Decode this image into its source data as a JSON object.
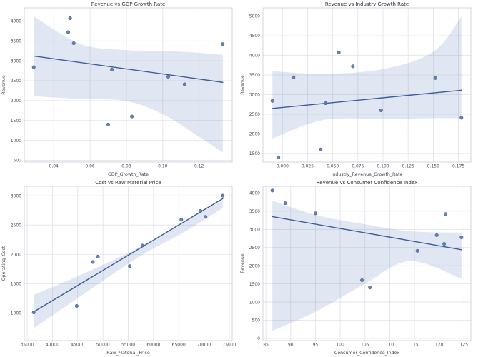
{
  "figure": {
    "background": "#ffffff",
    "point_color": "#5b76a8",
    "point_edge_color": "#3f5f96",
    "line_color": "#3d5d96",
    "band_color": "rgba(76,114,176,0.17)",
    "grid_color": "#e0e1e9",
    "spine_color": "#d5d6de",
    "title_color": "#33333a",
    "tick_color": "#4a4a52",
    "label_color": "#44444c"
  },
  "chart_data": [
    {
      "type": "scatter",
      "fit": "linear-regression-with-ci",
      "grid": true,
      "title": "Revenue vs GDP Growth Rate",
      "xlabel": "GDP_Growth_Rate",
      "ylabel": "Revenue",
      "x": [
        0.029,
        0.048,
        0.049,
        0.051,
        0.07,
        0.072,
        0.083,
        0.103,
        0.112,
        0.133
      ],
      "y": [
        2840,
        3720,
        4070,
        3440,
        1400,
        2780,
        1600,
        2600,
        2410,
        3420
      ],
      "xlim": [
        0.0238,
        0.1382
      ],
      "ylim": [
        455,
        4330
      ],
      "xticks": {
        "values": [
          0.04,
          0.06,
          0.08,
          0.1,
          0.12
        ],
        "labels": [
          "0.04",
          "0.06",
          "0.08",
          "0.10",
          "0.12"
        ]
      },
      "yticks": {
        "values": [
          500,
          1000,
          1500,
          2000,
          2500,
          3000,
          3500,
          4000
        ],
        "labels": [
          "500",
          "1000",
          "1500",
          "2000",
          "2500",
          "3000",
          "3500",
          "4000"
        ]
      },
      "ci_band": {
        "x": [
          0.029,
          0.055,
          0.08,
          0.1,
          0.117,
          0.133
        ],
        "upper": [
          4120,
          3420,
          3270,
          3250,
          3210,
          3150
        ],
        "lower": [
          2110,
          2040,
          1990,
          1660,
          1180,
          700
        ]
      }
    },
    {
      "type": "scatter",
      "fit": "linear-regression-with-ci",
      "grid": true,
      "title": "Revenue vs Industry Growth Rate",
      "xlabel": "Industry_Revenue_Growth_Rate",
      "ylabel": "Revenue",
      "x": [
        -0.01,
        -0.004,
        0.011,
        0.038,
        0.043,
        0.056,
        0.07,
        0.098,
        0.152,
        0.178
      ],
      "y": [
        2840,
        1400,
        3440,
        1600,
        2780,
        4070,
        3720,
        2600,
        3420,
        2410
      ],
      "xlim": [
        -0.0194,
        0.1874
      ],
      "ylim": [
        1280,
        5210
      ],
      "xticks": {
        "values": [
          0.0,
          0.025,
          0.05,
          0.075,
          0.1,
          0.125,
          0.15,
          0.175
        ],
        "labels": [
          "0.000",
          "0.025",
          "0.050",
          "0.075",
          "0.100",
          "0.125",
          "0.150",
          "0.175"
        ]
      },
      "yticks": {
        "values": [
          1500,
          2000,
          2500,
          3000,
          3500,
          4000,
          4500,
          5000
        ],
        "labels": [
          "1500",
          "2000",
          "2500",
          "3000",
          "3500",
          "4000",
          "4500",
          "5000"
        ]
      },
      "ci_band": {
        "x": [
          -0.01,
          0.04,
          0.1,
          0.15,
          0.178
        ],
        "upper": [
          3600,
          3530,
          3650,
          4090,
          4990
        ],
        "lower": [
          1880,
          2350,
          2380,
          2400,
          2400
        ]
      }
    },
    {
      "type": "scatter",
      "fit": "linear-regression-with-ci",
      "grid": true,
      "title": "Cost vs Raw Material Price",
      "xlabel": "Raw_Material_Price",
      "ylabel": "Operating_Cost",
      "x": [
        36300,
        44800,
        48000,
        49000,
        55300,
        57800,
        65500,
        69300,
        70300,
        73700
      ],
      "y": [
        1010,
        1120,
        1870,
        1960,
        1800,
        2150,
        2590,
        2740,
        2640,
        3000
      ],
      "xlim": [
        34430,
        75570
      ],
      "ylim": [
        530,
        3160
      ],
      "xticks": {
        "values": [
          35000,
          40000,
          45000,
          50000,
          55000,
          60000,
          65000,
          70000,
          75000
        ],
        "labels": [
          "35000",
          "40000",
          "45000",
          "50000",
          "55000",
          "60000",
          "65000",
          "70000",
          "75000"
        ]
      },
      "yticks": {
        "values": [
          1000,
          1500,
          2000,
          2500,
          3000
        ],
        "labels": [
          "1000",
          "1500",
          "2000",
          "2500",
          "3000"
        ]
      },
      "ci_band": {
        "x": [
          36300,
          44800,
          57000,
          65500,
          73700
        ],
        "upper": [
          1310,
          1620,
          2110,
          2530,
          2930
        ],
        "lower": [
          740,
          1240,
          1950,
          2350,
          2790
        ]
      }
    },
    {
      "type": "scatter",
      "fit": "linear-regression-with-ci",
      "grid": true,
      "title": "Revenue vs Consumer Confidence Index",
      "xlabel": "Consumer_Confidence_Index",
      "ylabel": "Revenue",
      "x": [
        86.3,
        88.9,
        95.0,
        104.4,
        106.0,
        115.6,
        119.5,
        121.3,
        121.0,
        124.5
      ],
      "y": [
        4070,
        3720,
        3440,
        1600,
        1400,
        2410,
        2840,
        3420,
        2600,
        2780
      ],
      "xlim": [
        84.4,
        126.4
      ],
      "ylim": [
        -60,
        4185
      ],
      "xticks": {
        "values": [
          85,
          90,
          95,
          100,
          105,
          110,
          115,
          120,
          125
        ],
        "labels": [
          "85",
          "90",
          "95",
          "100",
          "105",
          "110",
          "115",
          "120",
          "125"
        ]
      },
      "yticks": {
        "values": [
          0,
          500,
          1000,
          1500,
          2000,
          2500,
          3000,
          3500,
          4000
        ],
        "labels": [
          "0",
          "500",
          "1000",
          "1500",
          "2000",
          "2500",
          "3000",
          "3500",
          "4000"
        ]
      },
      "ci_band": {
        "x": [
          86.3,
          95.0,
          105.0,
          114.0,
          124.5
        ],
        "upper": [
          3790,
          3400,
          3140,
          2950,
          2910
        ],
        "lower": [
          210,
          730,
          1500,
          2130,
          1640
        ]
      }
    }
  ]
}
